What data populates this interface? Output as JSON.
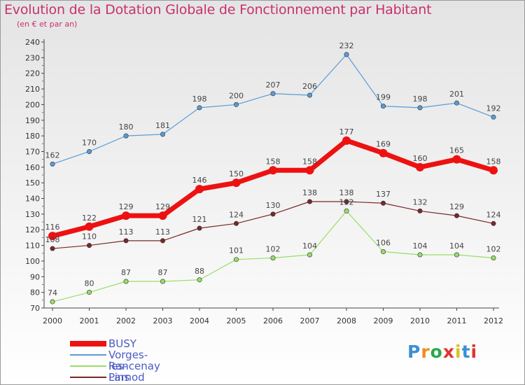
{
  "title": "Evolution de la Dotation Globale de Fonctionnement par Habitant",
  "subtitle": "(en € et par an)",
  "logo": {
    "text": "Proxiti",
    "letter_colors": [
      "#3a8fd6",
      "#f08c1e",
      "#2aa84a",
      "#e2342c",
      "#d8c21e",
      "#3a8fd6",
      "#e2342c"
    ]
  },
  "chart_data": {
    "type": "line",
    "title": "Evolution de la Dotation Globale de Fonctionnement par Habitant",
    "subtitle": "(en € et par an)",
    "x": [
      "2000",
      "2001",
      "2002",
      "2003",
      "2004",
      "2005",
      "2006",
      "2007",
      "2008",
      "2009",
      "2010",
      "2011",
      "2012"
    ],
    "ylim": [
      70,
      240
    ],
    "yticks": [
      70,
      80,
      90,
      100,
      110,
      120,
      130,
      140,
      150,
      160,
      170,
      180,
      190,
      200,
      210,
      220,
      230,
      240
    ],
    "grid": false,
    "legend_position": "bottom-left",
    "series": [
      {
        "name": "BUSY",
        "color": "#ee1111",
        "values": [
          116,
          122,
          129,
          129,
          146,
          150,
          158,
          158,
          177,
          169,
          160,
          165,
          158
        ],
        "labels": [
          "116",
          "122",
          "129",
          "129",
          "146",
          "150",
          "158",
          "158",
          "177",
          "169",
          "160",
          "165",
          "158"
        ]
      },
      {
        "name": "Vorges-les-Pins",
        "color": "#5b9bd5",
        "values": [
          162,
          170,
          180,
          181,
          198,
          200,
          207,
          206,
          232,
          199,
          198,
          201,
          192
        ],
        "labels": [
          "162",
          "170",
          "180",
          "181",
          "198",
          "200",
          "207",
          "206",
          "232",
          "199",
          "198",
          "201",
          "192"
        ]
      },
      {
        "name": "Rancenay",
        "color": "#99dd66",
        "values": [
          74,
          80,
          87,
          87,
          88,
          101,
          102,
          104,
          132,
          106,
          104,
          104,
          102
        ],
        "labels": [
          "74",
          "80",
          "87",
          "87",
          "88",
          "101",
          "102",
          "104",
          "132",
          "106",
          "104",
          "104",
          "102"
        ]
      },
      {
        "name": "Larnod",
        "color": "#7a2828",
        "values": [
          108,
          110,
          113,
          113,
          121,
          124,
          130,
          138,
          138,
          137,
          132,
          129,
          124
        ],
        "labels": [
          "108",
          "110",
          "113",
          "113",
          "121",
          "124",
          "130",
          "138",
          "138",
          "137",
          "132",
          "129",
          "124"
        ]
      }
    ]
  }
}
